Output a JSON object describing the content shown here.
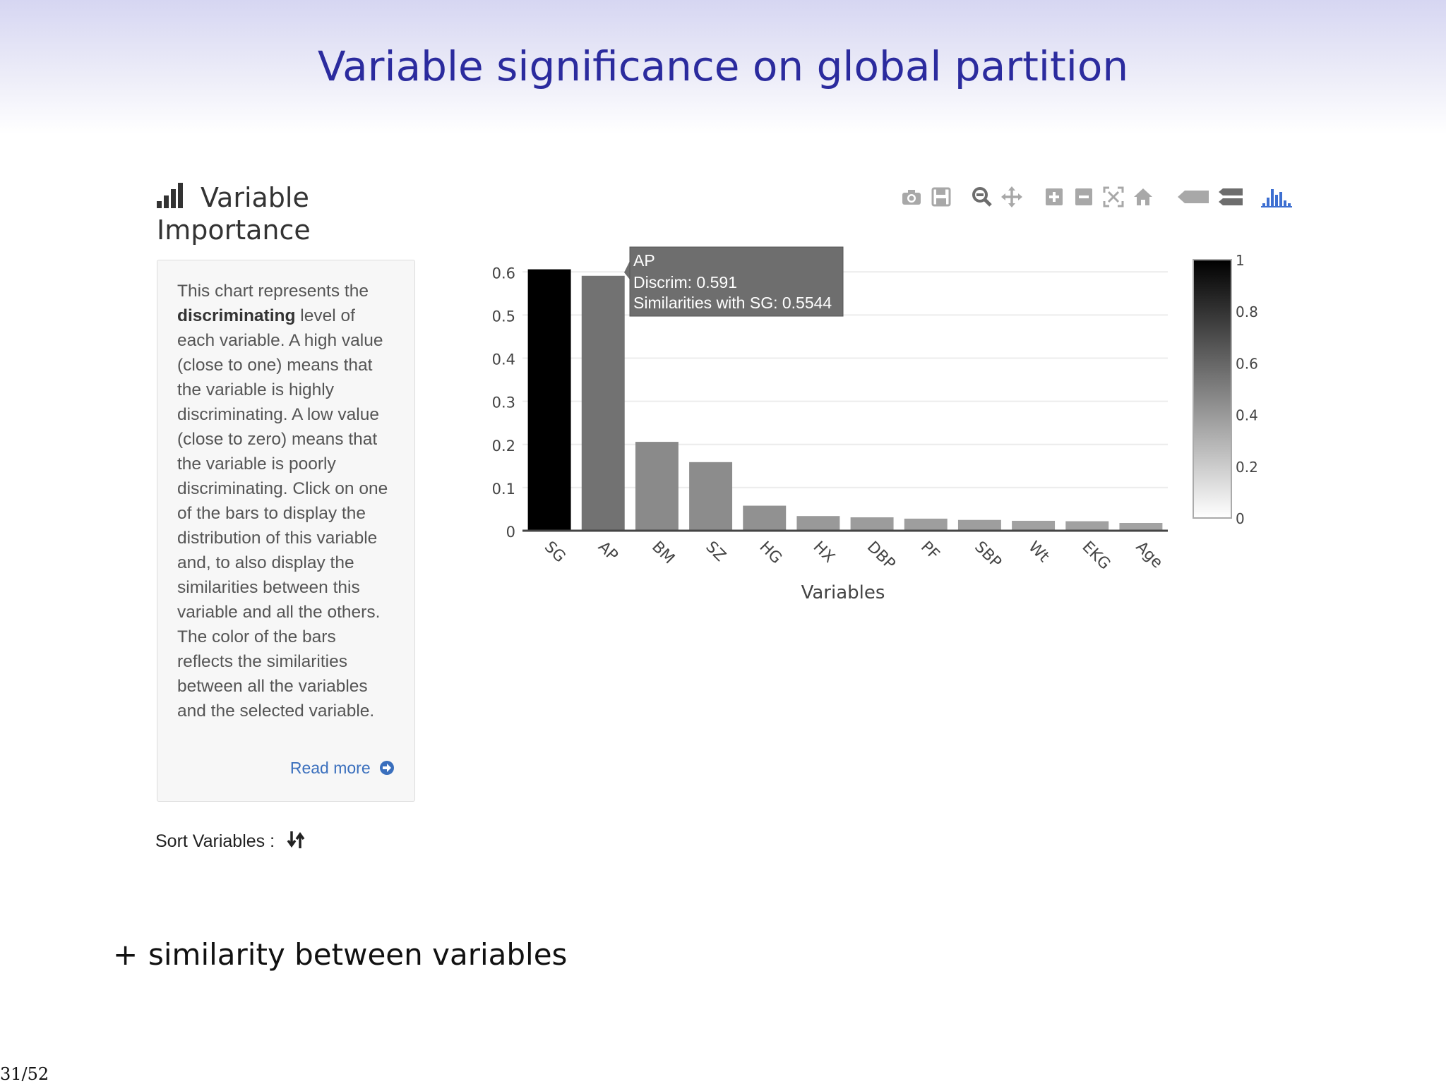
{
  "slide": {
    "title": "Variable significance on global partition",
    "bullet": "similarity between variables",
    "page_number": "31/52"
  },
  "panel": {
    "title_line1": "Variable",
    "title_line2": "Importance",
    "description_pre": "This chart represents the ",
    "description_bold": "discriminating",
    "description_post": " level of each variable. A high value (close to one) means that the variable is highly discriminating. A low value (close to zero) means that the variable is poorly discriminating. Click on one of the bars to display the distribution of this variable and, to also display the similarities between this variable and all the others. The color of the bars reflects the similarities between all the variables and the selected variable.",
    "read_more": "Read more",
    "sort_label": "Sort Variables :"
  },
  "toolbar": {
    "icons": [
      "camera-icon",
      "save-icon",
      "zoom-icon",
      "pan-icon",
      "zoom-in-icon",
      "zoom-out-icon",
      "autoscale-icon",
      "reset-axes-icon",
      "hover-closest-icon",
      "hover-compare-icon",
      "plotly-logo-icon"
    ]
  },
  "chart_data": {
    "type": "bar",
    "categories": [
      "SG",
      "AP",
      "BM",
      "SZ",
      "HG",
      "HX",
      "DBP",
      "PF",
      "SBP",
      "Wt",
      "EKG",
      "Age"
    ],
    "values": [
      0.606,
      0.591,
      0.206,
      0.159,
      0.058,
      0.034,
      0.031,
      0.028,
      0.025,
      0.023,
      0.022,
      0.018
    ],
    "similarities": [
      1.0,
      0.5544,
      0.46,
      0.45,
      0.43,
      0.4,
      0.39,
      0.38,
      0.38,
      0.37,
      0.37,
      0.36
    ],
    "xlabel": "Variables",
    "ylabel": "",
    "ylim": [
      0,
      0.6
    ],
    "yticks": [
      "0",
      "0.1",
      "0.2",
      "0.3",
      "0.4",
      "0.5",
      "0.6"
    ],
    "colorscale": {
      "min": 0,
      "max": 1,
      "ticks": [
        "0",
        "0.2",
        "0.4",
        "0.6",
        "0.8",
        "1"
      ]
    },
    "grid": true,
    "tooltip": {
      "title": "AP",
      "line1": "Discrim: 0.591",
      "line2": "Similarities with SG: 0.5544"
    }
  }
}
